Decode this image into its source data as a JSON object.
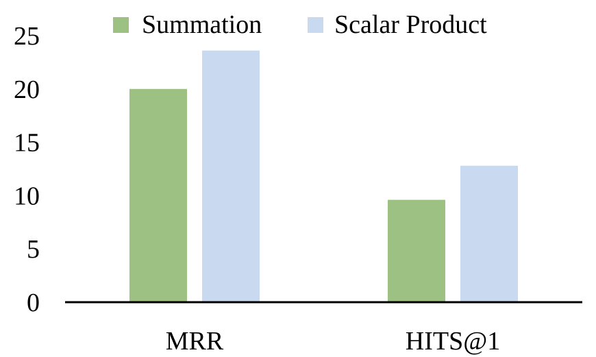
{
  "chart_data": {
    "type": "bar",
    "categories": [
      "MRR",
      "HITS@1"
    ],
    "series": [
      {
        "name": "Summation",
        "values": [
          20.0,
          9.6
        ],
        "color": "#9dc183"
      },
      {
        "name": "Scalar Product",
        "values": [
          23.6,
          12.8
        ],
        "color": "#c9daf0"
      }
    ],
    "ylim": [
      0,
      25
    ],
    "yticks": [
      "0",
      "5",
      "10",
      "15",
      "20",
      "25"
    ],
    "grid": false,
    "legend_position": "top"
  }
}
